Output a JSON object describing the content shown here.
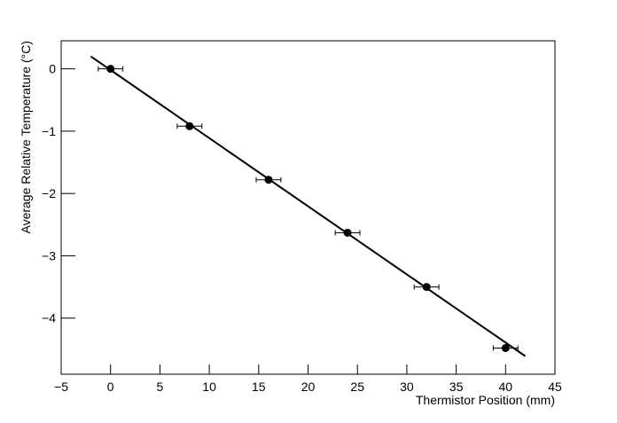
{
  "chart_data": {
    "type": "scatter",
    "x_label": "Thermistor Position (mm)",
    "y_label": "Average Relative Temperature (°C)",
    "x": [
      0,
      8,
      16,
      24,
      32,
      40
    ],
    "values": [
      0,
      -0.92,
      -1.78,
      -2.63,
      -3.5,
      -4.48
    ],
    "xerr": [
      1.25,
      1.25,
      1.25,
      1.25,
      1.25,
      1.25
    ],
    "color": "#000000",
    "fit": {
      "x": [
        -2,
        42
      ],
      "values": [
        0.2,
        -4.61
      ],
      "color": "#000000"
    },
    "xlim": [
      -5,
      45
    ],
    "ylim": [
      -4.9,
      0.45
    ],
    "xticks": [
      {
        "value": -5,
        "label": "−5"
      },
      0,
      5,
      10,
      15,
      20,
      25,
      30,
      35,
      40,
      45
    ],
    "yticks": [
      {
        "value": -4,
        "label": "−4"
      },
      {
        "value": -3,
        "label": "−3"
      },
      {
        "value": -2,
        "label": "−2"
      },
      {
        "value": -1,
        "label": "−1"
      },
      0
    ]
  }
}
